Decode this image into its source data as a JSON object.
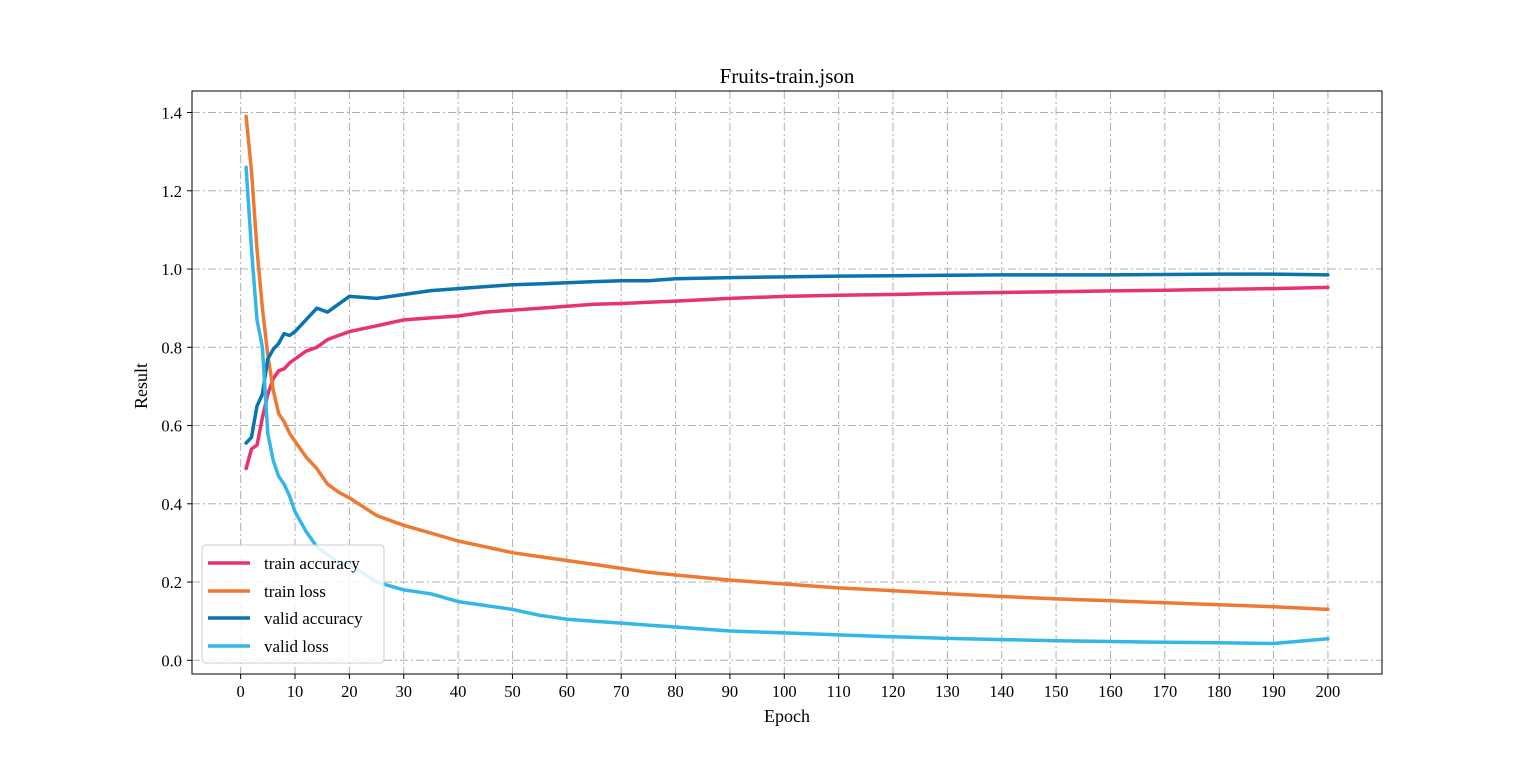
{
  "chart_data": {
    "type": "line",
    "title": "Fruits-train.json",
    "xlabel": "Epoch",
    "ylabel": "Result",
    "xlim": [
      -8.95,
      209.95
    ],
    "ylim": [
      -0.035,
      1.455
    ],
    "xticks": [
      0,
      10,
      20,
      30,
      40,
      50,
      60,
      70,
      80,
      90,
      100,
      110,
      120,
      130,
      140,
      150,
      160,
      170,
      180,
      190,
      200
    ],
    "yticks": [
      0.0,
      0.2,
      0.4,
      0.6,
      0.8,
      1.0,
      1.2,
      1.4
    ],
    "xtick_labels": [
      "0",
      "10",
      "20",
      "30",
      "40",
      "50",
      "60",
      "70",
      "80",
      "90",
      "100",
      "110",
      "120",
      "130",
      "140",
      "150",
      "160",
      "170",
      "180",
      "190",
      "200"
    ],
    "ytick_labels": [
      "0.0",
      "0.2",
      "0.4",
      "0.6",
      "0.8",
      "1.0",
      "1.2",
      "1.4"
    ],
    "grid": true,
    "grid_style": "dashdot",
    "legend_position": "lower-left",
    "x": [
      1,
      2,
      3,
      4,
      5,
      6,
      7,
      8,
      9,
      10,
      12,
      14,
      16,
      18,
      20,
      25,
      30,
      35,
      40,
      45,
      50,
      55,
      60,
      65,
      70,
      75,
      80,
      90,
      100,
      110,
      120,
      130,
      140,
      150,
      160,
      170,
      180,
      190,
      200
    ],
    "series": [
      {
        "name": "train accuracy",
        "color": "#e8336e",
        "values": [
          0.49,
          0.54,
          0.55,
          0.62,
          0.68,
          0.72,
          0.74,
          0.745,
          0.76,
          0.77,
          0.79,
          0.8,
          0.82,
          0.83,
          0.84,
          0.855,
          0.87,
          0.875,
          0.88,
          0.89,
          0.895,
          0.9,
          0.905,
          0.91,
          0.912,
          0.915,
          0.918,
          0.925,
          0.93,
          0.933,
          0.935,
          0.938,
          0.94,
          0.942,
          0.944,
          0.946,
          0.948,
          0.95,
          0.953
        ]
      },
      {
        "name": "train loss",
        "color": "#ee7a32",
        "values": [
          1.39,
          1.25,
          1.05,
          0.9,
          0.78,
          0.69,
          0.63,
          0.61,
          0.58,
          0.56,
          0.52,
          0.49,
          0.45,
          0.43,
          0.415,
          0.37,
          0.345,
          0.325,
          0.305,
          0.29,
          0.275,
          0.265,
          0.255,
          0.245,
          0.235,
          0.225,
          0.218,
          0.205,
          0.195,
          0.185,
          0.178,
          0.17,
          0.163,
          0.157,
          0.152,
          0.147,
          0.142,
          0.137,
          0.13
        ]
      },
      {
        "name": "valid accuracy",
        "color": "#0a74b3",
        "values": [
          0.555,
          0.57,
          0.65,
          0.68,
          0.77,
          0.795,
          0.81,
          0.835,
          0.83,
          0.84,
          0.87,
          0.9,
          0.89,
          0.91,
          0.93,
          0.925,
          0.935,
          0.945,
          0.95,
          0.955,
          0.96,
          0.962,
          0.965,
          0.968,
          0.97,
          0.97,
          0.975,
          0.978,
          0.98,
          0.982,
          0.983,
          0.984,
          0.985,
          0.985,
          0.985,
          0.986,
          0.987,
          0.987,
          0.985
        ]
      },
      {
        "name": "valid loss",
        "color": "#35b6ea",
        "values": [
          1.26,
          1.05,
          0.87,
          0.8,
          0.58,
          0.51,
          0.47,
          0.45,
          0.42,
          0.38,
          0.33,
          0.29,
          0.27,
          0.25,
          0.245,
          0.2,
          0.18,
          0.17,
          0.15,
          0.14,
          0.13,
          0.115,
          0.105,
          0.1,
          0.095,
          0.09,
          0.085,
          0.075,
          0.07,
          0.065,
          0.06,
          0.056,
          0.053,
          0.05,
          0.048,
          0.046,
          0.045,
          0.043,
          0.055
        ]
      }
    ]
  }
}
